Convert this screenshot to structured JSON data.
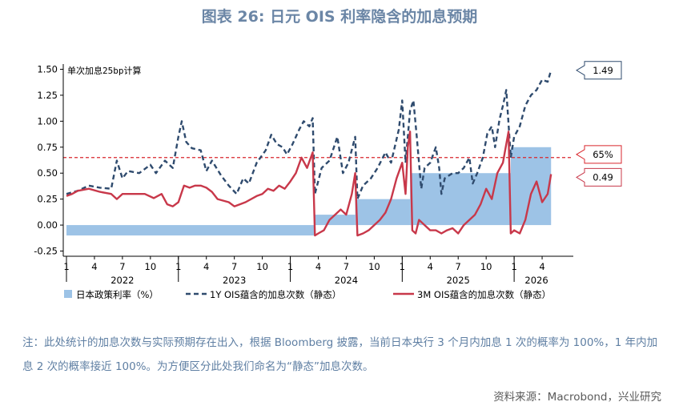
{
  "title": "图表  26: 日元 OIS 利率隐含的加息预期",
  "note": "注：此处统计的加息次数与实际预期存在出入，根据 Bloomberg 披露，当前日本央行 3 个月内加息 1 次的概率为 100%，1 年内加息 2 次的概率接近 100%。为方便区分此处我们命名为“静态”加息次数。",
  "source": "资料来源：Macrobond，兴业研究",
  "chart_data": {
    "type": "line",
    "annotation": "单次加息25bp计算",
    "ylim": [
      -0.3,
      1.55
    ],
    "y_ticks": [
      "1.50",
      "1.25",
      "1.00",
      "0.75",
      "0.50",
      "0.25",
      "0.00",
      "-0.25"
    ],
    "x_month_ticks": [
      "1",
      "4",
      "7",
      "10",
      "1",
      "4",
      "7",
      "10",
      "1",
      "4",
      "7",
      "10",
      "1",
      "4",
      "7",
      "10",
      "1",
      "4"
    ],
    "x_year_labels": [
      "2022",
      "2023",
      "2024",
      "2025",
      "2026"
    ],
    "reference_line": {
      "value": 0.65,
      "label": "65%",
      "color": "#d9262c"
    },
    "end_labels": {
      "1y": "1.49",
      "3m": "0.49"
    },
    "legend": {
      "policy": "日本政策利率（%）",
      "1y": "1Y OIS蕴含的加息次数（静态）",
      "3m": "3M OIS蕴含的加息次数（静态）"
    },
    "colors": {
      "policy": "#9dc3e6",
      "1y": "#2f4b6e",
      "3m": "#c8384a",
      "ref": "#d9262c"
    },
    "series": [
      {
        "name": "日本政策利率（%）",
        "type": "step",
        "points": [
          [
            2022.0,
            -0.1
          ],
          [
            2024.22,
            0.1
          ],
          [
            2024.58,
            0.25
          ],
          [
            2025.07,
            0.5
          ],
          [
            2025.97,
            0.75
          ],
          [
            2026.33,
            0.75
          ]
        ]
      },
      {
        "name": "1Y OIS蕴含的加息次数（静态）",
        "points": [
          [
            2022.0,
            0.3
          ],
          [
            2022.1,
            0.33
          ],
          [
            2022.2,
            0.38
          ],
          [
            2022.3,
            0.36
          ],
          [
            2022.4,
            0.35
          ],
          [
            2022.45,
            0.62
          ],
          [
            2022.5,
            0.45
          ],
          [
            2022.55,
            0.52
          ],
          [
            2022.65,
            0.5
          ],
          [
            2022.75,
            0.58
          ],
          [
            2022.8,
            0.5
          ],
          [
            2022.88,
            0.62
          ],
          [
            2022.95,
            0.55
          ],
          [
            2023.0,
            0.85
          ],
          [
            2023.03,
            1.0
          ],
          [
            2023.07,
            0.8
          ],
          [
            2023.12,
            0.74
          ],
          [
            2023.2,
            0.72
          ],
          [
            2023.25,
            0.52
          ],
          [
            2023.3,
            0.62
          ],
          [
            2023.38,
            0.48
          ],
          [
            2023.45,
            0.38
          ],
          [
            2023.52,
            0.3
          ],
          [
            2023.58,
            0.45
          ],
          [
            2023.63,
            0.4
          ],
          [
            2023.7,
            0.6
          ],
          [
            2023.78,
            0.72
          ],
          [
            2023.83,
            0.87
          ],
          [
            2023.88,
            0.78
          ],
          [
            2023.93,
            0.75
          ],
          [
            2023.97,
            0.68
          ],
          [
            2024.02,
            0.78
          ],
          [
            2024.08,
            0.92
          ],
          [
            2024.12,
            1.0
          ],
          [
            2024.17,
            0.95
          ],
          [
            2024.2,
            1.03
          ],
          [
            2024.22,
            0.3
          ],
          [
            2024.28,
            0.55
          ],
          [
            2024.35,
            0.62
          ],
          [
            2024.42,
            0.85
          ],
          [
            2024.47,
            0.5
          ],
          [
            2024.52,
            0.6
          ],
          [
            2024.58,
            0.85
          ],
          [
            2024.6,
            0.25
          ],
          [
            2024.65,
            0.38
          ],
          [
            2024.72,
            0.45
          ],
          [
            2024.78,
            0.55
          ],
          [
            2024.85,
            0.7
          ],
          [
            2024.9,
            0.6
          ],
          [
            2024.97,
            0.92
          ],
          [
            2025.0,
            1.2
          ],
          [
            2025.03,
            0.6
          ],
          [
            2025.07,
            1.1
          ],
          [
            2025.1,
            1.2
          ],
          [
            2025.13,
            0.85
          ],
          [
            2025.17,
            0.35
          ],
          [
            2025.2,
            0.55
          ],
          [
            2025.25,
            0.6
          ],
          [
            2025.3,
            0.75
          ],
          [
            2025.33,
            0.55
          ],
          [
            2025.35,
            0.3
          ],
          [
            2025.38,
            0.45
          ],
          [
            2025.45,
            0.5
          ],
          [
            2025.5,
            0.5
          ],
          [
            2025.55,
            0.55
          ],
          [
            2025.6,
            0.65
          ],
          [
            2025.63,
            0.4
          ],
          [
            2025.67,
            0.5
          ],
          [
            2025.72,
            0.65
          ],
          [
            2025.76,
            0.88
          ],
          [
            2025.8,
            0.95
          ],
          [
            2025.83,
            0.75
          ],
          [
            2025.87,
            1.02
          ],
          [
            2025.9,
            1.15
          ],
          [
            2025.93,
            1.3
          ],
          [
            2025.97,
            0.65
          ],
          [
            2026.0,
            0.85
          ],
          [
            2026.05,
            0.95
          ],
          [
            2026.1,
            1.15
          ],
          [
            2026.15,
            1.25
          ],
          [
            2026.2,
            1.3
          ],
          [
            2026.25,
            1.4
          ],
          [
            2026.3,
            1.38
          ],
          [
            2026.33,
            1.49
          ]
        ]
      },
      {
        "name": "3M OIS蕴含的加息次数（静态）",
        "points": [
          [
            2022.0,
            0.28
          ],
          [
            2022.05,
            0.3
          ],
          [
            2022.1,
            0.33
          ],
          [
            2022.2,
            0.35
          ],
          [
            2022.3,
            0.32
          ],
          [
            2022.4,
            0.3
          ],
          [
            2022.45,
            0.25
          ],
          [
            2022.5,
            0.3
          ],
          [
            2022.6,
            0.3
          ],
          [
            2022.7,
            0.3
          ],
          [
            2022.78,
            0.26
          ],
          [
            2022.85,
            0.3
          ],
          [
            2022.9,
            0.2
          ],
          [
            2022.95,
            0.18
          ],
          [
            2023.0,
            0.22
          ],
          [
            2023.05,
            0.38
          ],
          [
            2023.1,
            0.36
          ],
          [
            2023.15,
            0.38
          ],
          [
            2023.2,
            0.38
          ],
          [
            2023.25,
            0.36
          ],
          [
            2023.3,
            0.32
          ],
          [
            2023.35,
            0.25
          ],
          [
            2023.45,
            0.22
          ],
          [
            2023.5,
            0.18
          ],
          [
            2023.55,
            0.2
          ],
          [
            2023.6,
            0.22
          ],
          [
            2023.7,
            0.28
          ],
          [
            2023.75,
            0.3
          ],
          [
            2023.8,
            0.35
          ],
          [
            2023.85,
            0.33
          ],
          [
            2023.9,
            0.38
          ],
          [
            2023.95,
            0.35
          ],
          [
            2024.0,
            0.42
          ],
          [
            2024.05,
            0.5
          ],
          [
            2024.1,
            0.65
          ],
          [
            2024.15,
            0.55
          ],
          [
            2024.2,
            0.7
          ],
          [
            2024.22,
            -0.1
          ],
          [
            2024.25,
            -0.08
          ],
          [
            2024.3,
            -0.05
          ],
          [
            2024.35,
            0.05
          ],
          [
            2024.4,
            0.1
          ],
          [
            2024.45,
            0.15
          ],
          [
            2024.5,
            0.1
          ],
          [
            2024.55,
            0.3
          ],
          [
            2024.58,
            0.5
          ],
          [
            2024.6,
            -0.1
          ],
          [
            2024.65,
            -0.08
          ],
          [
            2024.7,
            -0.05
          ],
          [
            2024.75,
            0.0
          ],
          [
            2024.8,
            0.05
          ],
          [
            2024.85,
            0.12
          ],
          [
            2024.9,
            0.25
          ],
          [
            2024.95,
            0.45
          ],
          [
            2025.0,
            0.6
          ],
          [
            2025.03,
            0.3
          ],
          [
            2025.05,
            0.75
          ],
          [
            2025.07,
            0.9
          ],
          [
            2025.09,
            -0.05
          ],
          [
            2025.12,
            -0.08
          ],
          [
            2025.15,
            0.05
          ],
          [
            2025.2,
            0.0
          ],
          [
            2025.25,
            -0.05
          ],
          [
            2025.3,
            -0.05
          ],
          [
            2025.35,
            -0.08
          ],
          [
            2025.4,
            -0.05
          ],
          [
            2025.45,
            -0.03
          ],
          [
            2025.5,
            -0.08
          ],
          [
            2025.55,
            0.0
          ],
          [
            2025.6,
            0.05
          ],
          [
            2025.65,
            0.1
          ],
          [
            2025.7,
            0.2
          ],
          [
            2025.75,
            0.35
          ],
          [
            2025.8,
            0.25
          ],
          [
            2025.85,
            0.5
          ],
          [
            2025.9,
            0.6
          ],
          [
            2025.95,
            0.9
          ],
          [
            2025.97,
            -0.08
          ],
          [
            2026.0,
            -0.05
          ],
          [
            2026.05,
            -0.08
          ],
          [
            2026.1,
            0.05
          ],
          [
            2026.15,
            0.3
          ],
          [
            2026.2,
            0.42
          ],
          [
            2026.25,
            0.22
          ],
          [
            2026.3,
            0.3
          ],
          [
            2026.33,
            0.49
          ]
        ]
      }
    ]
  }
}
